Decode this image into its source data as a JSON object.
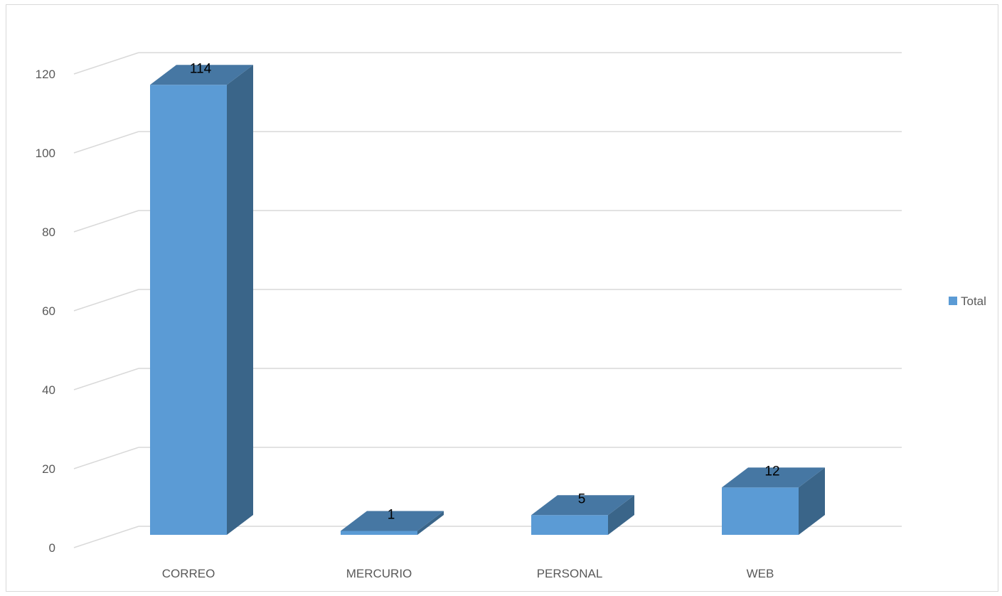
{
  "chart_data": {
    "type": "bar",
    "style": "3d-column",
    "categories": [
      "CORREO",
      "MERCURIO",
      "PERSONAL",
      "WEB"
    ],
    "series": [
      {
        "name": "Total",
        "values": [
          114,
          1,
          5,
          12
        ]
      }
    ],
    "ylim": [
      0,
      120
    ],
    "yticks": [
      0,
      20,
      40,
      60,
      80,
      100,
      120
    ],
    "grid": true,
    "legend": "right",
    "data_labels": true,
    "colors": {
      "front": "#5b9bd5",
      "side": "#3a6589",
      "top": "#4677a3",
      "grid": "#d9d9d9"
    }
  }
}
